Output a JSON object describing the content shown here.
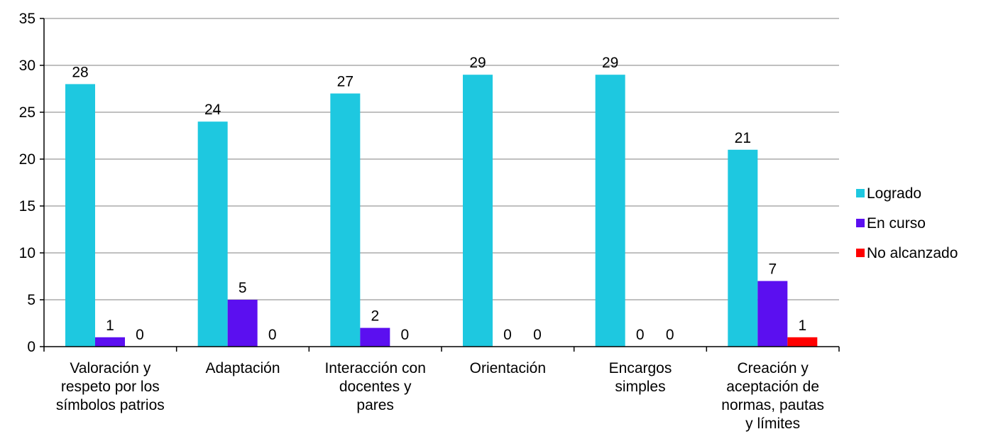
{
  "chart_data": {
    "type": "bar",
    "categories": [
      [
        "Valoración y",
        "respeto por los",
        "símbolos patrios"
      ],
      [
        "Adaptación"
      ],
      [
        "Interacción con",
        "docentes y",
        "pares"
      ],
      [
        "Orientación"
      ],
      [
        "Encargos",
        "simples"
      ],
      [
        "Creación y",
        "aceptación de",
        "normas, pautas",
        "y límites"
      ]
    ],
    "series": [
      {
        "name": "Logrado",
        "color": "#1ec8e0",
        "values": [
          28,
          24,
          27,
          29,
          29,
          21
        ]
      },
      {
        "name": "En curso",
        "color": "#5b0ff0",
        "values": [
          1,
          5,
          2,
          0,
          0,
          7
        ]
      },
      {
        "name": "No alcanzado",
        "color": "#ff0000",
        "values": [
          0,
          0,
          0,
          0,
          0,
          1
        ]
      }
    ],
    "ylim": [
      0,
      35
    ],
    "yticks": [
      0,
      5,
      10,
      15,
      20,
      25,
      30,
      35
    ],
    "grid": true,
    "legend": "right"
  }
}
